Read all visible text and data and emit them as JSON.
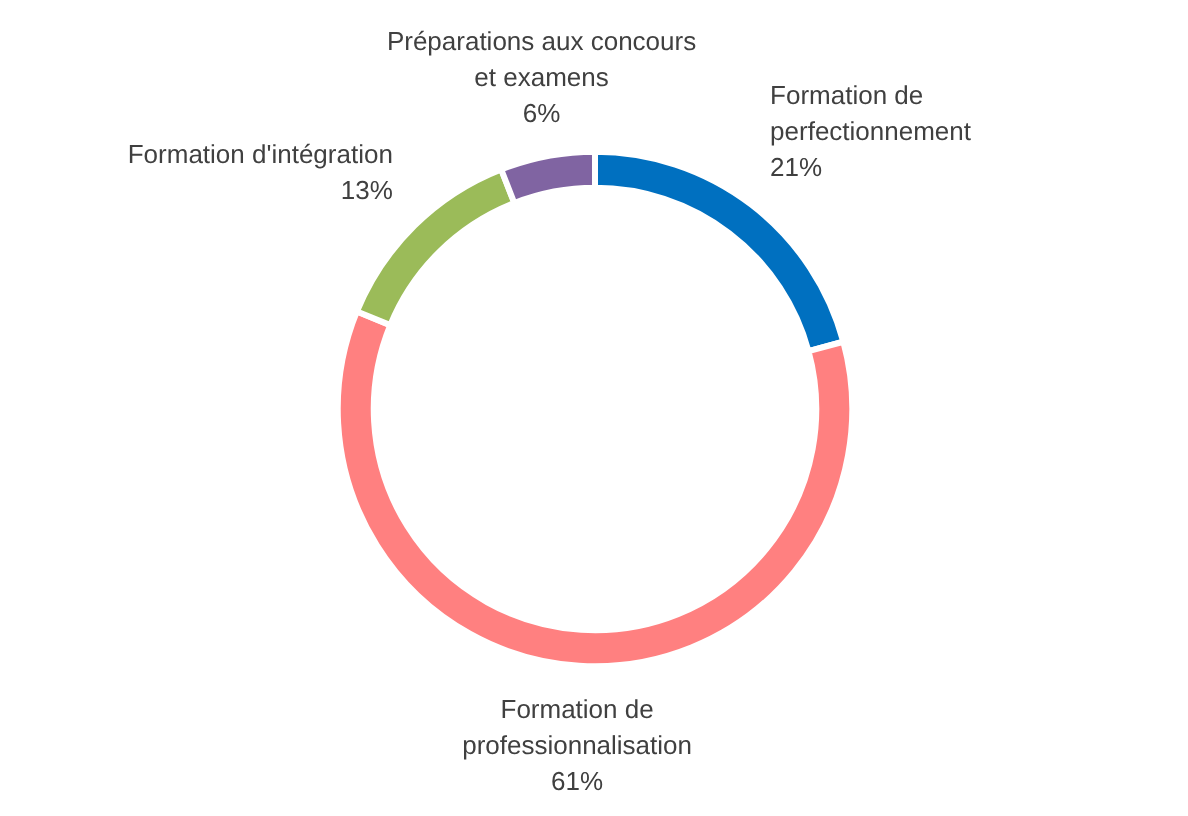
{
  "chart_data": {
    "type": "donut",
    "categories": [
      "Formation de perfectionnement",
      "Formation de professionnalisation",
      "Formation d'intégration",
      "Préparations aux concours et examens"
    ],
    "values": [
      21,
      61,
      13,
      6
    ],
    "colors": [
      "#0070c0",
      "#ff8080",
      "#9bbb59",
      "#8064a2"
    ],
    "value_labels": [
      "21%",
      "61%",
      "13%",
      "6%"
    ]
  }
}
